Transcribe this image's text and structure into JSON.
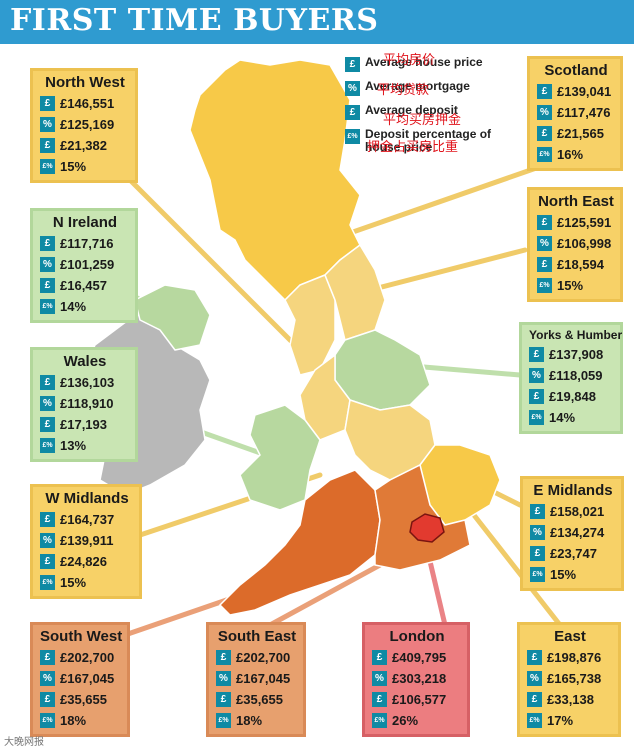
{
  "header": {
    "title": "FIRST TIME BUYERS"
  },
  "legend": {
    "items": [
      {
        "icon": "£",
        "label": "Average house price"
      },
      {
        "icon": "%",
        "label": "Average mortgage"
      },
      {
        "icon": "£",
        "label": "Average deposit"
      },
      {
        "icon": "£%",
        "label": "Deposit percentage of house price"
      }
    ],
    "chinese": [
      "平均房价",
      "平均贷款",
      "平均买房押金",
      "押金占买房比重"
    ]
  },
  "regions": {
    "north_west": {
      "name": "North West",
      "price": "£146,551",
      "mortgage": "£125,169",
      "deposit": "£21,382",
      "pct": "15%"
    },
    "n_ireland": {
      "name": "N Ireland",
      "price": "£117,716",
      "mortgage": "£101,259",
      "deposit": "£16,457",
      "pct": "14%"
    },
    "wales": {
      "name": "Wales",
      "price": "£136,103",
      "mortgage": "£118,910",
      "deposit": "£17,193",
      "pct": "13%"
    },
    "w_midlands": {
      "name": "W Midlands",
      "price": "£164,737",
      "mortgage": "£139,911",
      "deposit": "£24,826",
      "pct": "15%"
    },
    "south_west": {
      "name": "South West",
      "price": "£202,700",
      "mortgage": "£167,045",
      "deposit": "£35,655",
      "pct": "18%"
    },
    "south_east": {
      "name": "South East",
      "price": "£202,700",
      "mortgage": "£167,045",
      "deposit": "£35,655",
      "pct": "18%"
    },
    "london": {
      "name": "London",
      "price": "£409,795",
      "mortgage": "£303,218",
      "deposit": "£106,577",
      "pct": "26%"
    },
    "east": {
      "name": "East",
      "price": "£198,876",
      "mortgage": "£165,738",
      "deposit": "£33,138",
      "pct": "17%"
    },
    "e_midlands": {
      "name": "E Midlands",
      "price": "£158,021",
      "mortgage": "£134,274",
      "deposit": "£23,747",
      "pct": "15%"
    },
    "yorks": {
      "name": "Yorks & Humber",
      "price": "£137,908",
      "mortgage": "£118,059",
      "deposit": "£19,848",
      "pct": "14%"
    },
    "north_east": {
      "name": "North East",
      "price": "£125,591",
      "mortgage": "£106,998",
      "deposit": "£18,594",
      "pct": "15%"
    },
    "scotland": {
      "name": "Scotland",
      "price": "£139,041",
      "mortgage": "£117,476",
      "deposit": "£21,565",
      "pct": "16%"
    }
  },
  "watermark": "大晚网报"
}
